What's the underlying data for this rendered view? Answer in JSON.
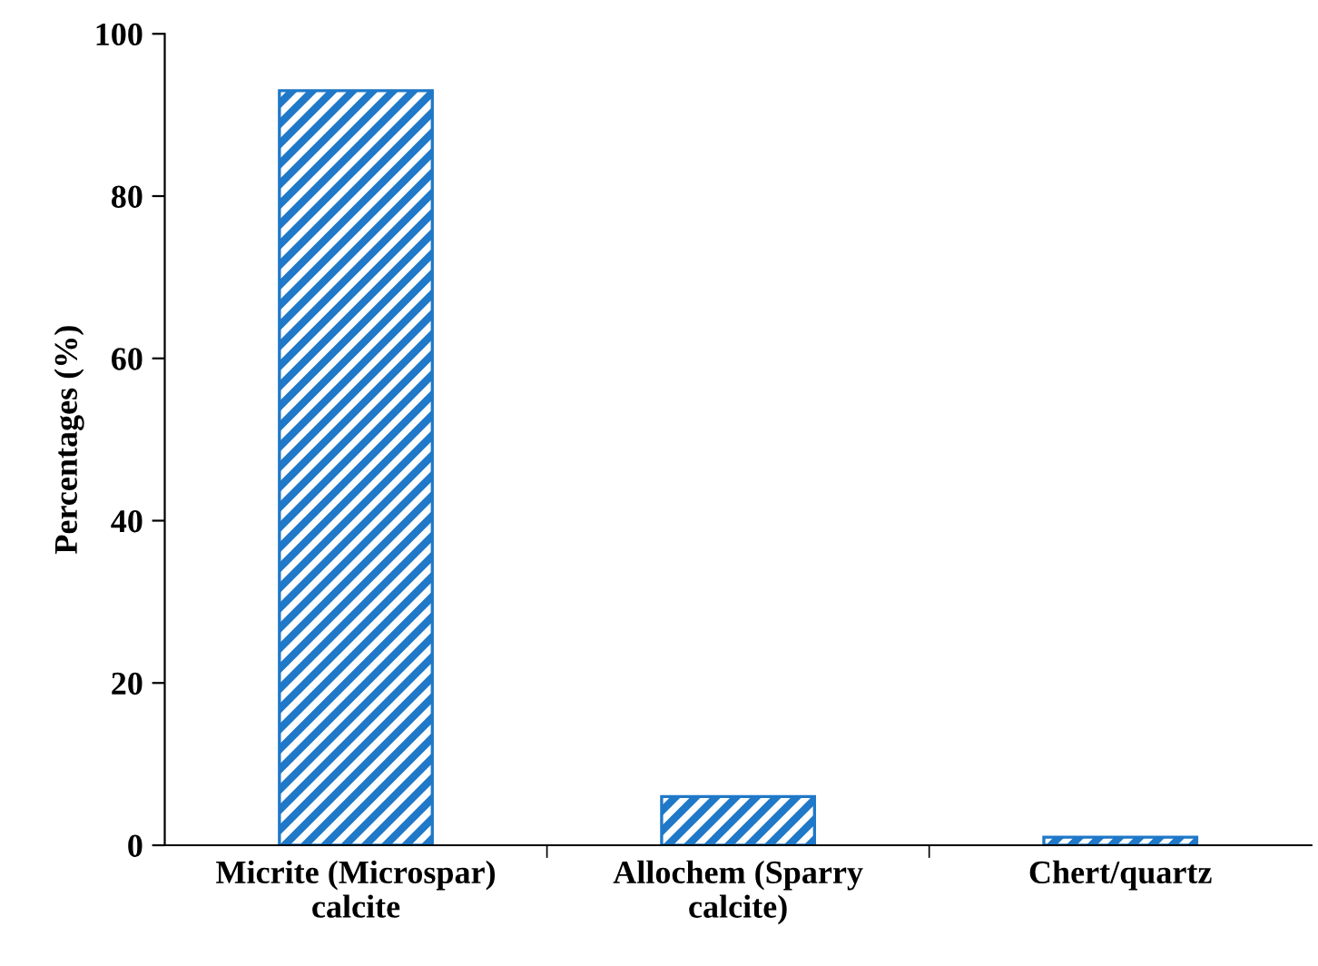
{
  "chart_data": {
    "type": "bar",
    "ylabel": "Percentages (%)",
    "categories": [
      "Micrite (Microspar)\ncalcite",
      "Allochem (Sparry\ncalcite)",
      "Chert/quartz"
    ],
    "values": [
      93,
      6,
      1
    ],
    "color": "#1f78c8",
    "ylim": [
      0,
      100
    ],
    "yticks": [
      0,
      20,
      40,
      60,
      80,
      100
    ],
    "grid": false
  }
}
